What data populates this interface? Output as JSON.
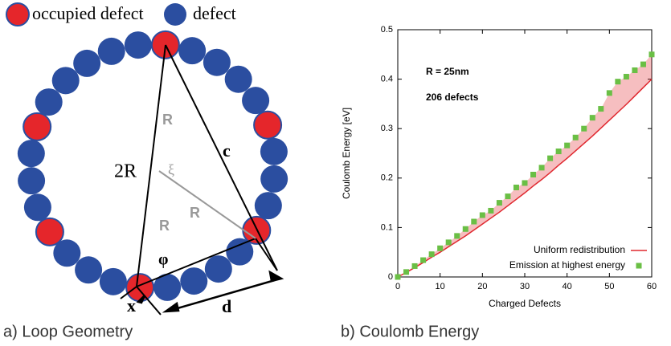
{
  "diagram": {
    "legend": [
      "occupied defect",
      "defect"
    ],
    "labels": {
      "two_r": "2R",
      "r_upper": "R",
      "xi": "ξ",
      "c": "c",
      "r_mid": "R",
      "r_lower": "R",
      "phi": "φ",
      "x": "x",
      "d": "d"
    },
    "caption": "a) Loop Geometry"
  },
  "chart_data": {
    "type": "line",
    "caption": "b) Coulomb Energy",
    "xlabel": "Charged Defects",
    "ylabel": "Coulomb Energy [eV]",
    "annotations": [
      "R = 25nm",
      "206 defects"
    ],
    "x": [
      0,
      2,
      4,
      6,
      8,
      10,
      12,
      14,
      16,
      18,
      20,
      22,
      24,
      26,
      28,
      30,
      32,
      34,
      36,
      38,
      40,
      42,
      44,
      46,
      48,
      50,
      52,
      54,
      56,
      58,
      60
    ],
    "series": [
      {
        "name": "Uniform redistribution",
        "color": "#e0282f",
        "style": "line",
        "values": [
          0,
          0.009,
          0.019,
          0.029,
          0.04,
          0.05,
          0.061,
          0.072,
          0.083,
          0.095,
          0.107,
          0.119,
          0.131,
          0.144,
          0.157,
          0.17,
          0.184,
          0.197,
          0.211,
          0.226,
          0.24,
          0.255,
          0.27,
          0.285,
          0.301,
          0.317,
          0.333,
          0.349,
          0.366,
          0.383,
          0.4
        ]
      },
      {
        "name": "Emission at highest energy",
        "color": "#6abf45",
        "style": "markers",
        "values": [
          0,
          0.01,
          0.022,
          0.034,
          0.046,
          0.058,
          0.07,
          0.083,
          0.097,
          0.112,
          0.125,
          0.134,
          0.15,
          0.163,
          0.181,
          0.19,
          0.207,
          0.221,
          0.24,
          0.254,
          0.266,
          0.282,
          0.3,
          0.322,
          0.34,
          0.372,
          0.395,
          0.405,
          0.418,
          0.43,
          0.45
        ]
      }
    ],
    "xlim": [
      0,
      60
    ],
    "xticks": [
      0,
      10,
      20,
      30,
      40,
      50,
      60
    ],
    "ylim": [
      0,
      0.5
    ],
    "yticks": [
      0,
      0.1,
      0.2,
      0.3,
      0.4,
      0.5
    ],
    "legend": "lower right"
  }
}
